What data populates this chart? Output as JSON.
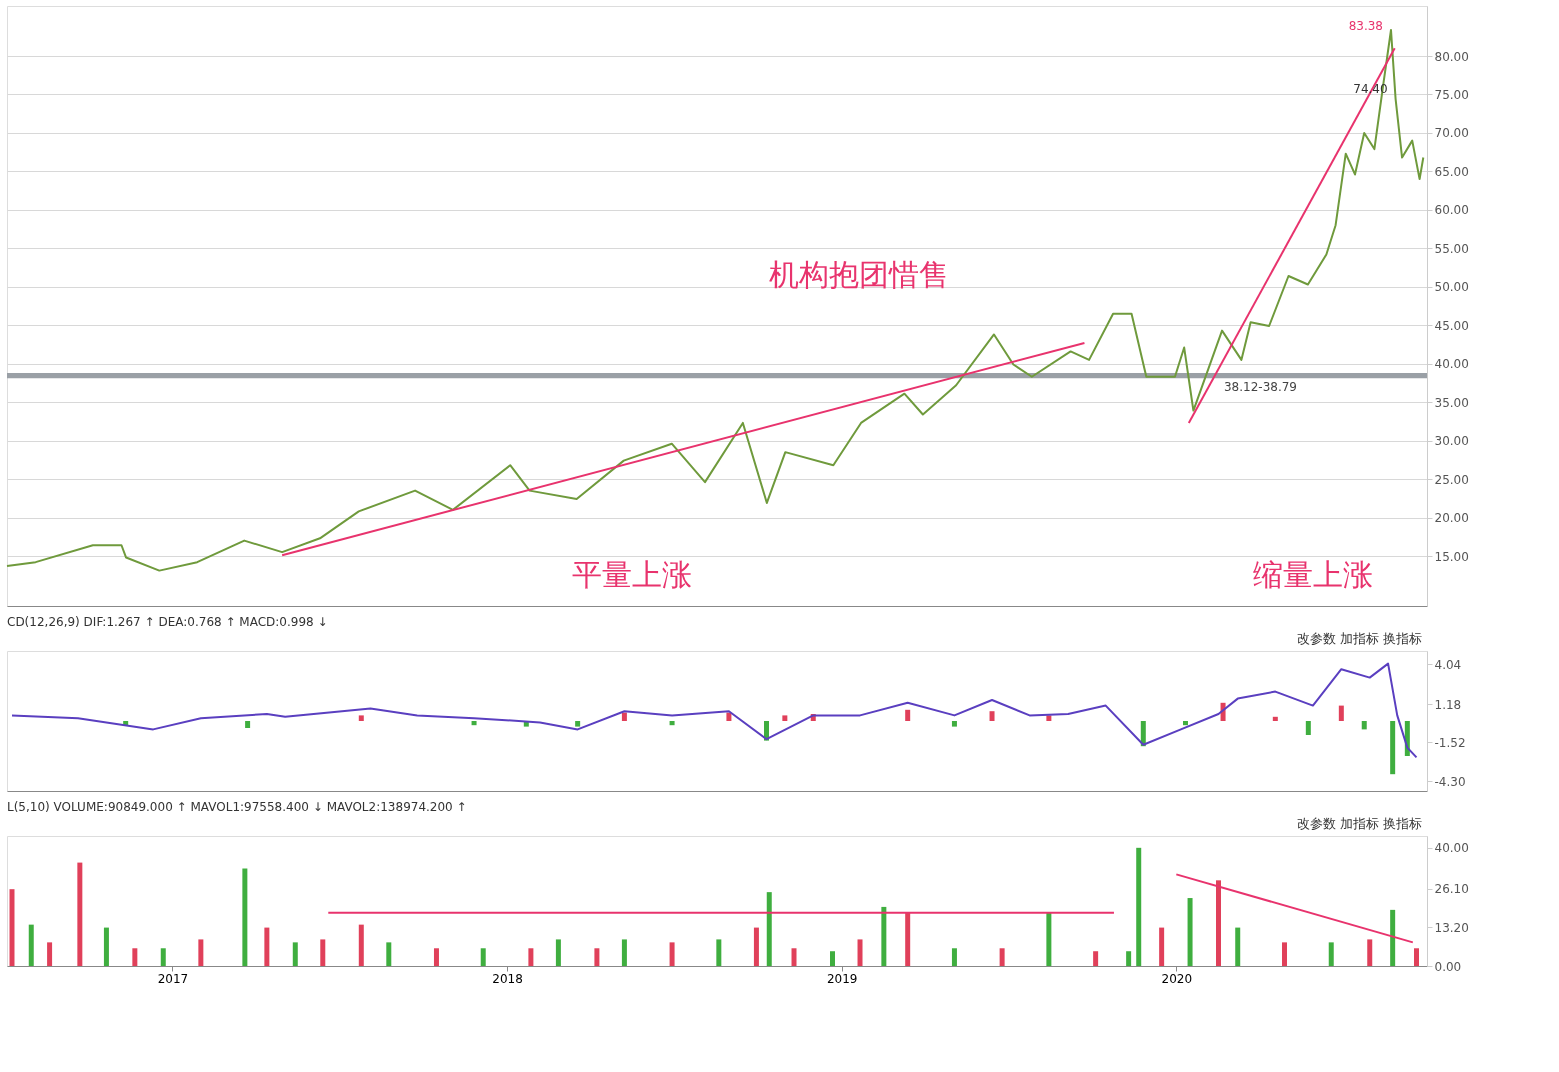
{
  "chart_data": [
    {
      "type": "line",
      "xlim": [
        "2016-07-10",
        "2020-09-25"
      ],
      "ylim": [
        8.5,
        86.5
      ],
      "yticks": [
        {
          "value": 15,
          "label": "15.00"
        },
        {
          "value": 20,
          "label": "20.00"
        },
        {
          "value": 25,
          "label": "25.00"
        },
        {
          "value": 30,
          "label": "30.00"
        },
        {
          "value": 35,
          "label": "35.00"
        },
        {
          "value": 40,
          "label": "40.00"
        },
        {
          "value": 45,
          "label": "45.00"
        },
        {
          "value": 50,
          "label": "50.00"
        },
        {
          "value": 55,
          "label": "55.00"
        },
        {
          "value": 60,
          "label": "60.00"
        },
        {
          "value": 65,
          "label": "65.00"
        },
        {
          "value": 70,
          "label": "70.00"
        },
        {
          "value": 75,
          "label": "75.00"
        },
        {
          "value": 80,
          "label": "80.00"
        }
      ],
      "grid": "y",
      "tick_labels": "y",
      "series": [
        {
          "color": "#6f9a3c",
          "x": [
            "2016-07-10",
            "2016-08-10",
            "2016-10-11",
            "2016-11-11",
            "2016-11-16",
            "2016-12-22",
            "2017-02-01",
            "2017-03-24",
            "2017-05-04",
            "2017-06-14",
            "2017-07-26",
            "2017-09-25",
            "2017-11-05",
            "2018-01-06",
            "2018-01-27",
            "2018-03-19",
            "2018-05-09",
            "2018-06-30",
            "2018-08-05",
            "2018-09-15",
            "2018-10-11",
            "2018-10-31",
            "2018-12-22",
            "2019-01-21",
            "2019-03-09",
            "2019-03-29",
            "2019-05-04",
            "2019-06-14",
            "2019-07-05",
            "2019-07-25",
            "2019-09-05",
            "2019-09-25",
            "2019-10-21",
            "2019-11-10",
            "2019-11-26",
            "2019-12-27",
            "2020-01-06",
            "2020-01-16",
            "2020-02-16",
            "2020-03-08",
            "2020-03-18",
            "2020-04-07",
            "2020-04-28",
            "2020-05-19",
            "2020-06-08",
            "2020-06-18",
            "2020-06-29",
            "2020-07-09",
            "2020-07-19",
            "2020-07-30",
            "2020-08-09",
            "2020-08-17",
            "2020-08-22",
            "2020-08-29",
            "2020-09-09",
            "2020-09-17",
            "2020-09-21"
          ],
          "values": [
            13.7,
            14.2,
            16.4,
            16.4,
            14.8,
            13.1,
            14.2,
            17.0,
            15.5,
            17.3,
            20.8,
            23.5,
            21.0,
            26.8,
            23.5,
            22.4,
            27.4,
            29.6,
            24.6,
            32.3,
            21.9,
            28.5,
            26.8,
            32.3,
            36.1,
            33.4,
            37.2,
            43.8,
            39.9,
            38.3,
            41.6,
            40.5,
            46.5,
            46.5,
            38.3,
            38.3,
            42.1,
            33.9,
            44.3,
            40.5,
            45.4,
            44.9,
            51.4,
            50.3,
            54.2,
            58.0,
            67.3,
            64.6,
            70.0,
            67.9,
            76.6,
            83.38,
            74.4,
            66.8,
            69.0,
            64.0,
            66.8
          ]
        },
        {
          "type": "line",
          "color": "#e8336d",
          "x": [
            "2017-05-04",
            "2019-09-20"
          ],
          "values": [
            15.1,
            42.7
          ]
        },
        {
          "type": "line",
          "color": "#e8336d",
          "x": [
            "2020-01-11",
            "2020-08-21"
          ],
          "values": [
            32.3,
            81.0
          ]
        }
      ],
      "bands": [
        {
          "axis": "y",
          "from": 38.12,
          "to": 38.79,
          "label": "38.12-38.79",
          "color": "#9aa0a6"
        }
      ],
      "annotations": [
        "机构抱团惜售",
        "平量上涨",
        "缩量上涨",
        {
          "text": "83.38",
          "x": "2020-08-17",
          "y": 83.38
        },
        {
          "text": "74.40",
          "x": "2020-08-22",
          "y": 74.4
        }
      ]
    },
    {
      "type": "line",
      "title": "CD(12,26,9)  DIF:1.267 ↑  DEA:0.768 ↑  MACD:0.998 ↓",
      "xlim": [
        "2016-07-10",
        "2020-09-25"
      ],
      "ylim": [
        -5,
        5
      ],
      "yticks": [
        {
          "value": 4.04,
          "label": "4.04"
        },
        {
          "value": 1.18,
          "label": "1.18"
        },
        {
          "value": -1.52,
          "label": "-1.52"
        },
        {
          "value": -4.3,
          "label": "-4.30"
        }
      ],
      "tick_labels": "y",
      "series": [
        {
          "type": "bar",
          "x": [
            "2016-11-11",
            "2017-03-24",
            "2017-07-26",
            "2017-11-26",
            "2018-01-22",
            "2018-03-19",
            "2018-05-09",
            "2018-06-30",
            "2018-08-31",
            "2018-10-11",
            "2018-10-31",
            "2018-12-01",
            "2019-03-14",
            "2019-05-04",
            "2019-06-14",
            "2019-08-15",
            "2019-11-26",
            "2020-01-11",
            "2020-02-21",
            "2020-04-18",
            "2020-05-24",
            "2020-06-29",
            "2020-07-24",
            "2020-08-24",
            "2020-09-09"
          ],
          "values": [
            -0.3,
            -0.5,
            0.4,
            -0.3,
            -0.4,
            -0.4,
            0.6,
            -0.3,
            0.6,
            -1.4,
            0.4,
            0.5,
            0.8,
            -0.4,
            0.7,
            0.4,
            -1.8,
            -0.3,
            1.3,
            0.3,
            -1.0,
            1.1,
            -0.6,
            -3.8,
            -2.5
          ],
          "colors": [
            "#3fae3f",
            "#3fae3f",
            "#e0405a",
            "#3fae3f",
            "#3fae3f",
            "#3fae3f",
            "#e0405a",
            "#3fae3f",
            "#e0405a",
            "#3fae3f",
            "#e0405a",
            "#e0405a",
            "#e0405a",
            "#3fae3f",
            "#e0405a",
            "#e0405a",
            "#3fae3f",
            "#3fae3f",
            "#e0405a",
            "#e0405a",
            "#3fae3f",
            "#e0405a",
            "#3fae3f",
            "#3fae3f",
            "#3fae3f"
          ]
        },
        {
          "color": "#5a3fc0",
          "x": [
            "2016-07-10",
            "2016-09-20",
            "2016-12-11",
            "2017-02-01",
            "2017-04-14",
            "2017-05-04",
            "2017-08-05",
            "2017-09-25",
            "2017-11-26",
            "2018-02-06",
            "2018-03-19",
            "2018-05-09",
            "2018-06-30",
            "2018-08-31",
            "2018-10-11",
            "2018-12-01",
            "2019-01-21",
            "2019-03-14",
            "2019-05-04",
            "2019-06-14",
            "2019-07-25",
            "2019-09-05",
            "2019-10-16",
            "2019-11-26",
            "2020-01-06",
            "2020-02-16",
            "2020-03-08",
            "2020-04-18",
            "2020-05-29",
            "2020-06-29",
            "2020-07-30",
            "2020-08-19",
            "2020-08-29",
            "2020-09-09",
            "2020-09-19"
          ],
          "values": [
            0.4,
            0.2,
            -0.6,
            0.2,
            0.5,
            0.3,
            0.9,
            0.4,
            0.2,
            -0.1,
            -0.6,
            0.7,
            0.4,
            0.7,
            -1.3,
            0.4,
            0.4,
            1.3,
            0.4,
            1.5,
            0.4,
            0.5,
            1.1,
            -1.7,
            -0.6,
            0.5,
            1.6,
            2.1,
            1.1,
            3.7,
            3.1,
            4.1,
            0.4,
            -1.9,
            -2.6
          ]
        }
      ],
      "annotations": [
        "改参数  加指标  换指标"
      ]
    },
    {
      "type": "bar",
      "title": "L(5,10)  VOLUME:90849.000 ↑  MAVOL1:97558.400 ↓  MAVOL2:138974.200 ↑",
      "xlim": [
        "2016-07-10",
        "2020-09-25"
      ],
      "ylim": [
        0,
        44
      ],
      "yticks": [
        {
          "value": 0,
          "label": "0.00"
        },
        {
          "value": 13.2,
          "label": "13.20"
        },
        {
          "value": 26.1,
          "label": "26.10"
        },
        {
          "value": 40,
          "label": "40.00"
        }
      ],
      "xticks": [
        "2017",
        "2018",
        "2019",
        "2020"
      ],
      "series": [
        {
          "x": [
            "2016-07-10",
            "2016-07-31",
            "2016-08-20",
            "2016-09-22",
            "2016-10-21",
            "2016-11-21",
            "2016-12-22",
            "2017-02-01",
            "2017-03-21",
            "2017-04-14",
            "2017-05-15",
            "2017-06-14",
            "2017-07-26",
            "2017-08-25",
            "2017-10-16",
            "2017-12-06",
            "2018-01-27",
            "2018-02-26",
            "2018-04-09",
            "2018-05-09",
            "2018-06-30",
            "2018-08-20",
            "2018-09-30",
            "2018-10-14",
            "2018-11-10",
            "2018-12-22",
            "2019-01-21",
            "2019-02-16",
            "2019-03-14",
            "2019-05-04",
            "2019-06-25",
            "2019-08-15",
            "2019-10-05",
            "2019-11-10",
            "2019-11-21",
            "2019-12-16",
            "2020-01-16",
            "2020-02-16",
            "2020-03-08",
            "2020-04-28",
            "2020-06-18",
            "2020-07-30",
            "2020-08-24",
            "2020-09-19"
          ],
          "values": [
            26,
            14,
            8,
            35,
            13,
            6,
            6,
            9,
            33,
            13,
            8,
            9,
            14,
            8,
            6,
            6,
            6,
            9,
            6,
            9,
            8,
            9,
            13,
            25,
            6,
            5,
            9,
            20,
            18,
            6,
            6,
            18,
            5,
            5,
            40,
            13,
            23,
            29,
            13,
            8,
            8,
            9,
            19,
            6
          ],
          "colors": [
            "#e0405a",
            "#3fae3f",
            "#e0405a",
            "#e0405a",
            "#3fae3f",
            "#e0405a",
            "#3fae3f",
            "#e0405a",
            "#3fae3f",
            "#e0405a",
            "#3fae3f",
            "#e0405a",
            "#e0405a",
            "#3fae3f",
            "#e0405a",
            "#3fae3f",
            "#e0405a",
            "#3fae3f",
            "#e0405a",
            "#3fae3f",
            "#e0405a",
            "#3fae3f",
            "#e0405a",
            "#3fae3f",
            "#e0405a",
            "#3fae3f",
            "#e0405a",
            "#3fae3f",
            "#e0405a",
            "#3fae3f",
            "#e0405a",
            "#3fae3f",
            "#e0405a",
            "#3fae3f",
            "#3fae3f",
            "#e0405a",
            "#3fae3f",
            "#e0405a",
            "#3fae3f",
            "#e0405a",
            "#3fae3f",
            "#e0405a",
            "#3fae3f",
            "#e0405a"
          ]
        },
        {
          "type": "line",
          "color": "#e8336d",
          "x": [
            "2017-06-20",
            "2019-10-25"
          ],
          "values": [
            18,
            18
          ]
        },
        {
          "type": "line",
          "color": "#e8336d",
          "x": [
            "2020-01-01",
            "2020-09-15"
          ],
          "values": [
            31,
            8
          ]
        }
      ],
      "annotations": [
        "改参数  加指标  换指标"
      ]
    }
  ]
}
